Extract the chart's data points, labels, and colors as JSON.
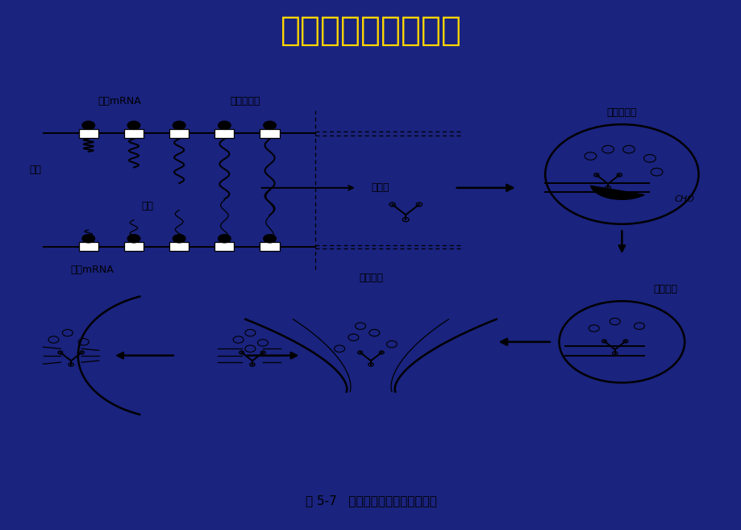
{
  "title": "抗体的生物合成过程",
  "title_color": "#FFD700",
  "title_fontsize": 30,
  "bg_color": "#1a237e",
  "panel_bg": "#ffffff",
  "caption": "图 5-7   免疫球蛋白合成和分泌过程",
  "caption_fontsize": 11,
  "labels": {
    "heavy_chain_mrna": "重链mRNA",
    "rough_er": "粗面内质网",
    "heavy_chain": "重链",
    "light_chain": "轻链",
    "light_chain_mrna": "轻链mRNA",
    "peptide_pool": "肽存库",
    "golgi": "高尔基氏体",
    "cho": "CHO",
    "plasma_membrane": "浆细胞膜",
    "secretory_vesicle": "分泌小泡"
  }
}
